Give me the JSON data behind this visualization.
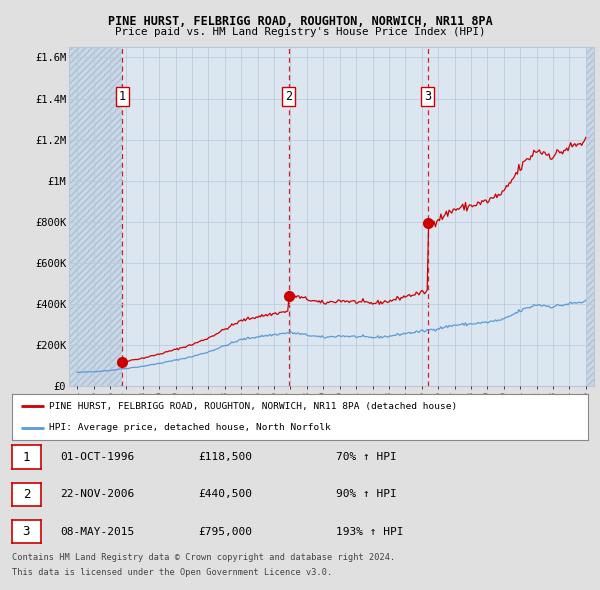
{
  "title": "PINE HURST, FELBRIGG ROAD, ROUGHTON, NORWICH, NR11 8PA",
  "subtitle": "Price paid vs. HM Land Registry's House Price Index (HPI)",
  "legend_line1": "PINE HURST, FELBRIGG ROAD, ROUGHTON, NORWICH, NR11 8PA (detached house)",
  "legend_line2": "HPI: Average price, detached house, North Norfolk",
  "footer1": "Contains HM Land Registry data © Crown copyright and database right 2024.",
  "footer2": "This data is licensed under the Open Government Licence v3.0.",
  "table": [
    {
      "num": "1",
      "date": "01-OCT-1996",
      "price": "£118,500",
      "hpi": "70% ↑ HPI"
    },
    {
      "num": "2",
      "date": "22-NOV-2006",
      "price": "£440,500",
      "hpi": "90% ↑ HPI"
    },
    {
      "num": "3",
      "date": "08-MAY-2015",
      "price": "£795,000",
      "hpi": "193% ↑ HPI"
    }
  ],
  "sale_dates": [
    1996.75,
    2006.9,
    2015.36
  ],
  "sale_prices": [
    118500,
    440500,
    795000
  ],
  "ylim": [
    0,
    1650000
  ],
  "yticks": [
    0,
    200000,
    400000,
    600000,
    800000,
    1000000,
    1200000,
    1400000,
    1600000
  ],
  "ytick_labels": [
    "£0",
    "£200K",
    "£400K",
    "£600K",
    "£800K",
    "£1M",
    "£1.2M",
    "£1.4M",
    "£1.6M"
  ],
  "red_line_color": "#cc0000",
  "blue_line_color": "#5b9bd5",
  "dashed_vline_color": "#cc0000",
  "bg_color": "#e0e0e0",
  "plot_bg_color": "#dce6f1",
  "grid_color": "#b8c8d8",
  "hatch_color": "#c8d8e8"
}
